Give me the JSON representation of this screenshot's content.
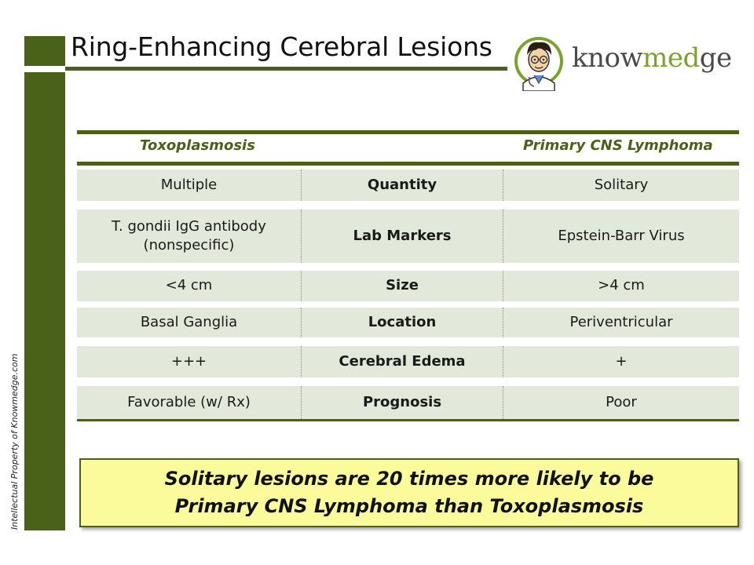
{
  "slide": {
    "title": "Ring-Enhancing Cerebral Lesions",
    "side_text": "Intellectual Property of Knowmedge.com"
  },
  "logo": {
    "text_part1": "know",
    "text_part2": "med",
    "text_part3": "ge",
    "accent_color": "#7aa32c",
    "icon": "doctor-cartoon-icon"
  },
  "table": {
    "headers": {
      "left": "Toxoplasmosis",
      "right": "Primary CNS Lymphoma"
    },
    "rows": [
      {
        "left": "Multiple",
        "center": "Quantity",
        "right": "Solitary"
      },
      {
        "left": "T. gondii IgG antibody (nonspecific)",
        "center": "Lab Markers",
        "right": "Epstein-Barr Virus"
      },
      {
        "left": "<4 cm",
        "center": "Size",
        "right": ">4 cm"
      },
      {
        "left": "Basal Ganglia",
        "center": "Location",
        "right": "Periventricular"
      },
      {
        "left": "+++",
        "center": "Cerebral Edema",
        "right": "+"
      },
      {
        "left": "Favorable (w/ Rx)",
        "center": "Prognosis",
        "right": "Poor"
      }
    ]
  },
  "callout": {
    "line1": "Solitary lesions are 20 times more likely to be",
    "line2": "Primary CNS Lymphoma than Toxoplasmosis"
  },
  "colors": {
    "brand_green": "#4a6119",
    "row_fill": "#e2e9da",
    "callout_fill": "#fbfb9b"
  }
}
